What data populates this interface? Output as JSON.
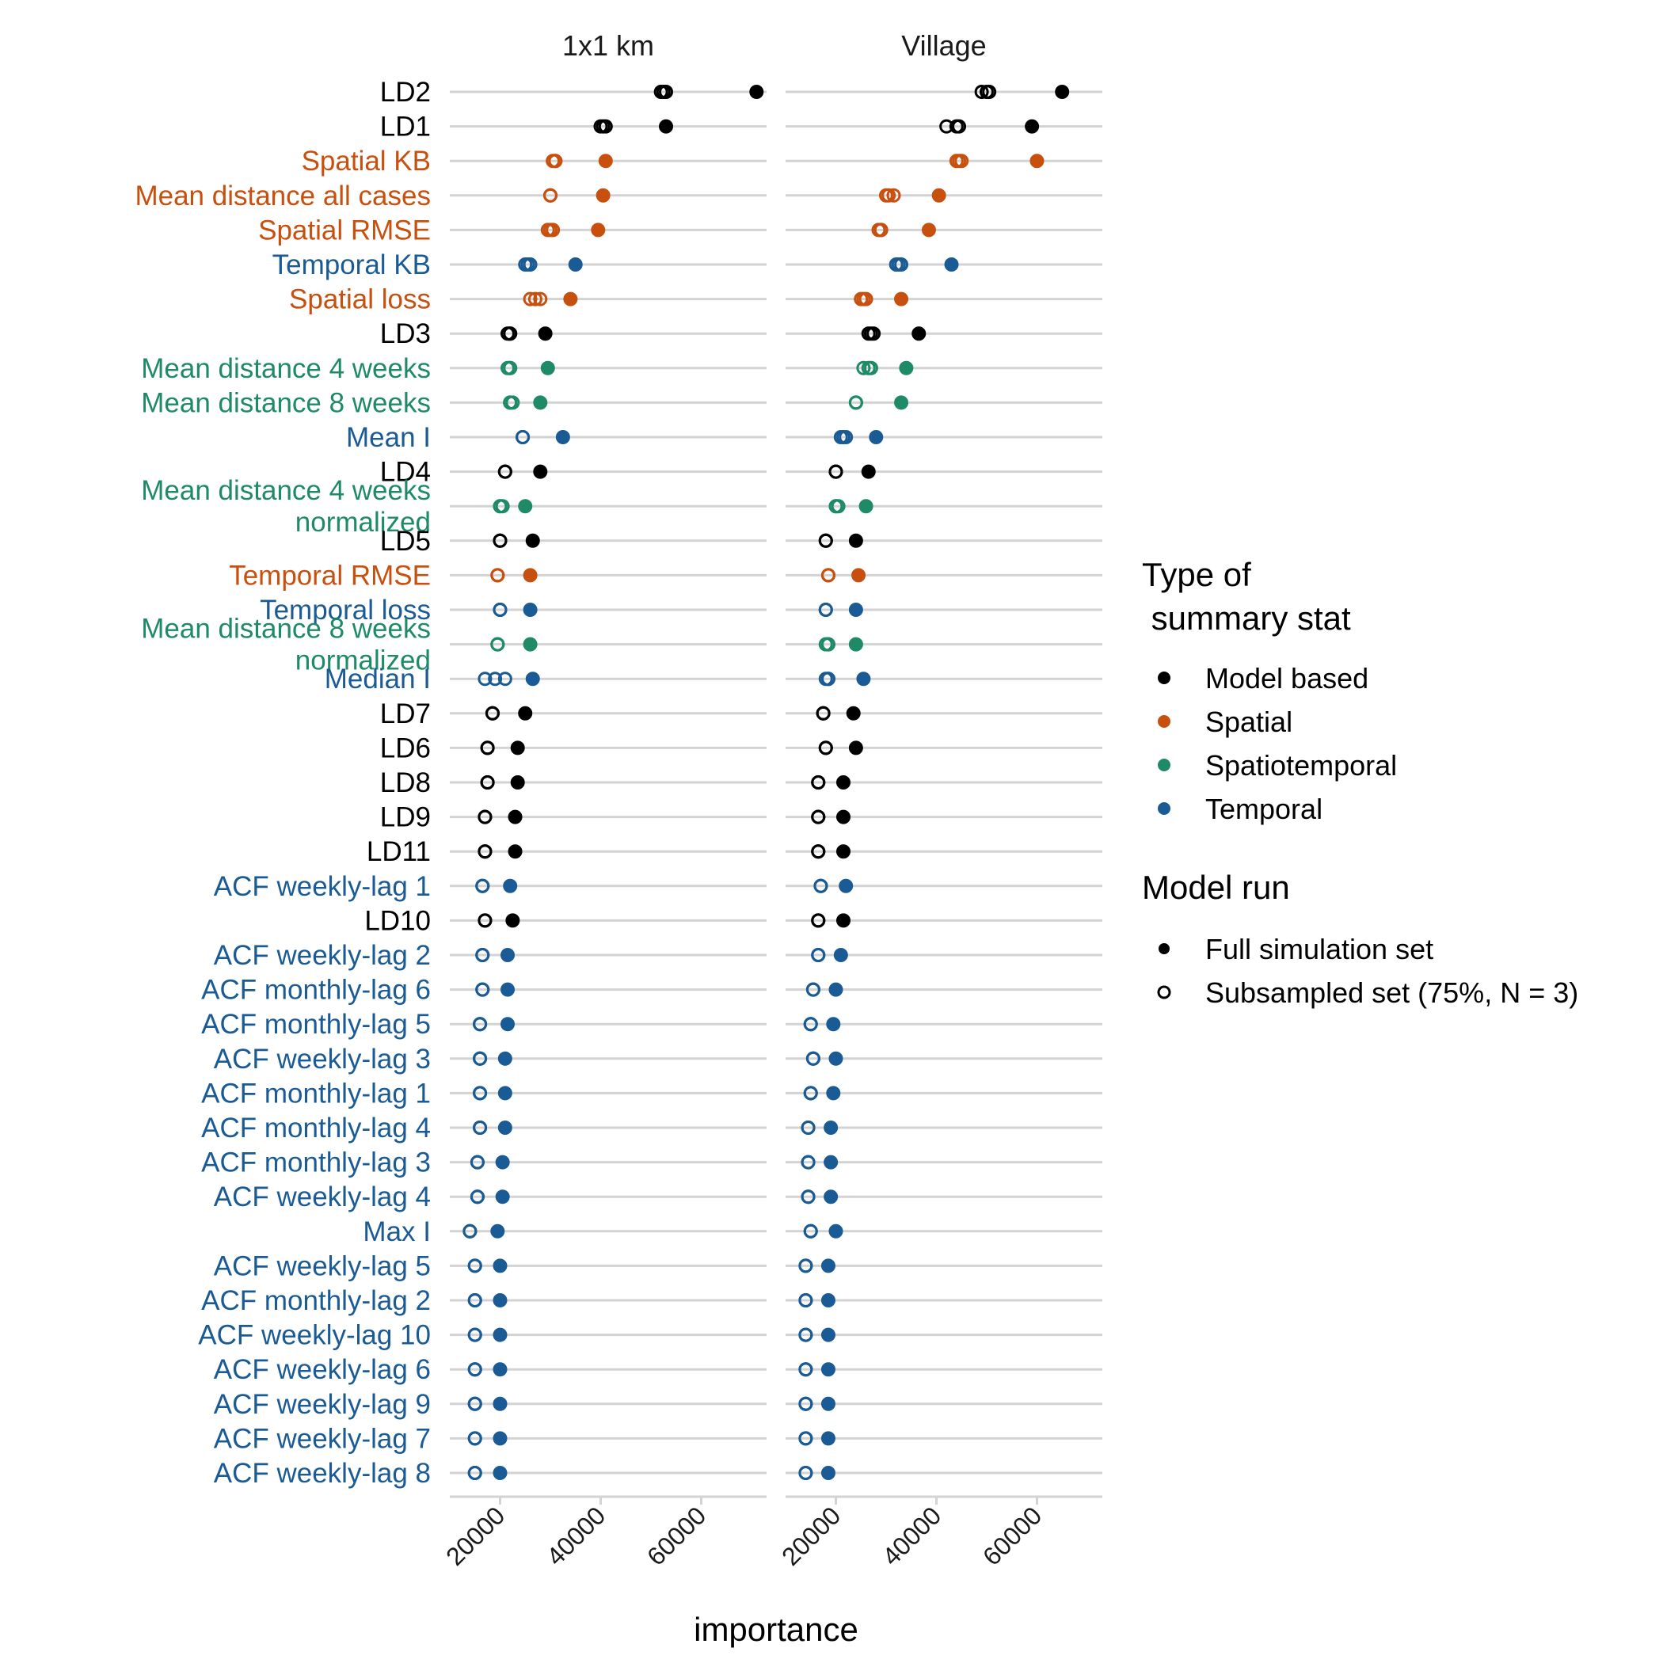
{
  "chart_data": {
    "type": "scatter",
    "facets": [
      "1x1 km",
      "Village"
    ],
    "xlabel": "importance",
    "xlim": [
      10000,
      73000
    ],
    "x_ticks": [
      20000,
      40000,
      60000
    ],
    "x_tick_labels": [
      "20000",
      "40000",
      "60000"
    ],
    "grid": "horizontal lines per category",
    "legend": {
      "position": "right",
      "color_title": "Type of\n summary stat",
      "color_entries": [
        {
          "label": "Model based",
          "type": "Model based"
        },
        {
          "label": "Spatial",
          "type": "Spatial"
        },
        {
          "label": "Spatiotemporal",
          "type": "Spatiotemporal"
        },
        {
          "label": "Temporal",
          "type": "Temporal"
        }
      ],
      "shape_title": "Model run",
      "shape_entries": [
        {
          "label": "Full simulation set",
          "filled": true
        },
        {
          "label": "Subsampled set (75%, N = 3)",
          "filled": false
        }
      ]
    },
    "colors": {
      "Model based": "#000000",
      "Spatial": "#C8500F",
      "Spatiotemporal": "#1E8A66",
      "Temporal": "#1A5B96"
    },
    "categories": [
      {
        "label": "LD2",
        "type": "Model based",
        "km": {
          "full": 71000,
          "sub": [
            52000,
            52500,
            53000
          ]
        },
        "village": {
          "full": 65000,
          "sub": [
            49000,
            50000,
            50500
          ]
        }
      },
      {
        "label": "LD1",
        "type": "Model based",
        "km": {
          "full": 53000,
          "sub": [
            40000,
            40500,
            41000
          ]
        },
        "village": {
          "full": 59000,
          "sub": [
            42000,
            44000,
            44500
          ]
        }
      },
      {
        "label": "Spatial KB",
        "type": "Spatial",
        "km": {
          "full": 41000,
          "sub": [
            30500,
            31000,
            31000
          ]
        },
        "village": {
          "full": 60000,
          "sub": [
            44000,
            44500,
            45000
          ]
        }
      },
      {
        "label": "Mean distance all cases",
        "type": "Spatial",
        "km": {
          "full": 40500,
          "sub": [
            30000,
            30000,
            30000
          ]
        },
        "village": {
          "full": 40500,
          "sub": [
            30000,
            30500,
            31500
          ]
        }
      },
      {
        "label": "Spatial RMSE",
        "type": "Spatial",
        "km": {
          "full": 39500,
          "sub": [
            29500,
            30000,
            30500
          ]
        },
        "village": {
          "full": 38500,
          "sub": [
            28500,
            29000,
            29000
          ]
        }
      },
      {
        "label": "Temporal KB",
        "type": "Temporal",
        "km": {
          "full": 35000,
          "sub": [
            25000,
            25500,
            26000
          ]
        },
        "village": {
          "full": 43000,
          "sub": [
            32000,
            32500,
            33000
          ]
        }
      },
      {
        "label": "Spatial loss",
        "type": "Spatial",
        "km": {
          "full": 34000,
          "sub": [
            26000,
            27000,
            28000
          ]
        },
        "village": {
          "full": 33000,
          "sub": [
            25000,
            25500,
            26000
          ]
        }
      },
      {
        "label": "LD3",
        "type": "Model based",
        "km": {
          "full": 29000,
          "sub": [
            21500,
            22000,
            22000
          ]
        },
        "village": {
          "full": 36500,
          "sub": [
            26500,
            27000,
            27500
          ]
        }
      },
      {
        "label": "Mean distance 4 weeks",
        "type": "Spatiotemporal",
        "km": {
          "full": 29500,
          "sub": [
            21500,
            22000,
            22000
          ]
        },
        "village": {
          "full": 34000,
          "sub": [
            25500,
            26500,
            27000
          ]
        }
      },
      {
        "label": "Mean distance 8 weeks",
        "type": "Spatiotemporal",
        "km": {
          "full": 28000,
          "sub": [
            22000,
            22000,
            22500
          ]
        },
        "village": {
          "full": 33000,
          "sub": [
            24000,
            24000,
            24000
          ]
        }
      },
      {
        "label": "Mean I",
        "type": "Temporal",
        "km": {
          "full": 32500,
          "sub": [
            24500,
            24500,
            24500
          ]
        },
        "village": {
          "full": 28000,
          "sub": [
            21000,
            21500,
            22000
          ]
        }
      },
      {
        "label": "LD4",
        "type": "Model based",
        "km": {
          "full": 28000,
          "sub": [
            21000,
            21000,
            21000
          ]
        },
        "village": {
          "full": 26500,
          "sub": [
            20000,
            20000,
            20000
          ]
        }
      },
      {
        "label": "Mean distance 4 weeks\nnormalized",
        "type": "Spatiotemporal",
        "km": {
          "full": 25000,
          "sub": [
            20000,
            20000,
            20500
          ]
        },
        "village": {
          "full": 26000,
          "sub": [
            20000,
            20000,
            20500
          ]
        }
      },
      {
        "label": "LD5",
        "type": "Model based",
        "km": {
          "full": 26500,
          "sub": [
            20000,
            20000,
            20000
          ]
        },
        "village": {
          "full": 24000,
          "sub": [
            18000,
            18000,
            18000
          ]
        }
      },
      {
        "label": "Temporal RMSE",
        "type": "Spatial",
        "km": {
          "full": 26000,
          "sub": [
            19500,
            19500,
            19500
          ]
        },
        "village": {
          "full": 24500,
          "sub": [
            18500,
            18500,
            18500
          ]
        }
      },
      {
        "label": "Temporal loss",
        "type": "Temporal",
        "km": {
          "full": 26000,
          "sub": [
            20000,
            20000,
            20000
          ]
        },
        "village": {
          "full": 24000,
          "sub": [
            18000,
            18000,
            18000
          ]
        }
      },
      {
        "label": "Mean distance 8 weeks\nnormalized",
        "type": "Spatiotemporal",
        "km": {
          "full": 26000,
          "sub": [
            19500,
            19500,
            19500
          ]
        },
        "village": {
          "full": 24000,
          "sub": [
            18000,
            18500,
            18500
          ]
        }
      },
      {
        "label": "Median I",
        "type": "Temporal",
        "km": {
          "full": 26500,
          "sub": [
            17000,
            19000,
            21000
          ]
        },
        "village": {
          "full": 25500,
          "sub": [
            18000,
            18500,
            18500
          ]
        }
      },
      {
        "label": "LD7",
        "type": "Model based",
        "km": {
          "full": 25000,
          "sub": [
            18500,
            18500,
            18500
          ]
        },
        "village": {
          "full": 23500,
          "sub": [
            17500,
            17500,
            17500
          ]
        }
      },
      {
        "label": "LD6",
        "type": "Model based",
        "km": {
          "full": 23500,
          "sub": [
            17500,
            17500,
            17500
          ]
        },
        "village": {
          "full": 24000,
          "sub": [
            18000,
            18000,
            18000
          ]
        }
      },
      {
        "label": "LD8",
        "type": "Model based",
        "km": {
          "full": 23500,
          "sub": [
            17500,
            17500,
            17500
          ]
        },
        "village": {
          "full": 21500,
          "sub": [
            16500,
            16500,
            16500
          ]
        }
      },
      {
        "label": "LD9",
        "type": "Model based",
        "km": {
          "full": 23000,
          "sub": [
            17000,
            17000,
            17000
          ]
        },
        "village": {
          "full": 21500,
          "sub": [
            16500,
            16500,
            16500
          ]
        }
      },
      {
        "label": "LD11",
        "type": "Model based",
        "km": {
          "full": 23000,
          "sub": [
            17000,
            17000,
            17000
          ]
        },
        "village": {
          "full": 21500,
          "sub": [
            16500,
            16500,
            16500
          ]
        }
      },
      {
        "label": "ACF weekly-lag 1",
        "type": "Temporal",
        "km": {
          "full": 22000,
          "sub": [
            16500,
            16500,
            16500
          ]
        },
        "village": {
          "full": 22000,
          "sub": [
            17000,
            17000,
            17000
          ]
        }
      },
      {
        "label": "LD10",
        "type": "Model based",
        "km": {
          "full": 22500,
          "sub": [
            17000,
            17000,
            17000
          ]
        },
        "village": {
          "full": 21500,
          "sub": [
            16500,
            16500,
            16500
          ]
        }
      },
      {
        "label": "ACF weekly-lag 2",
        "type": "Temporal",
        "km": {
          "full": 21500,
          "sub": [
            16500,
            16500,
            16500
          ]
        },
        "village": {
          "full": 21000,
          "sub": [
            16500,
            16500,
            16500
          ]
        }
      },
      {
        "label": "ACF monthly-lag 6",
        "type": "Temporal",
        "km": {
          "full": 21500,
          "sub": [
            16500,
            16500,
            16500
          ]
        },
        "village": {
          "full": 20000,
          "sub": [
            15500,
            15500,
            15500
          ]
        }
      },
      {
        "label": "ACF monthly-lag 5",
        "type": "Temporal",
        "km": {
          "full": 21500,
          "sub": [
            16000,
            16000,
            16000
          ]
        },
        "village": {
          "full": 19500,
          "sub": [
            15000,
            15000,
            15000
          ]
        }
      },
      {
        "label": "ACF weekly-lag 3",
        "type": "Temporal",
        "km": {
          "full": 21000,
          "sub": [
            16000,
            16000,
            16000
          ]
        },
        "village": {
          "full": 20000,
          "sub": [
            15500,
            15500,
            15500
          ]
        }
      },
      {
        "label": "ACF monthly-lag 1",
        "type": "Temporal",
        "km": {
          "full": 21000,
          "sub": [
            16000,
            16000,
            16000
          ]
        },
        "village": {
          "full": 19500,
          "sub": [
            15000,
            15000,
            15000
          ]
        }
      },
      {
        "label": "ACF monthly-lag 4",
        "type": "Temporal",
        "km": {
          "full": 21000,
          "sub": [
            16000,
            16000,
            16000
          ]
        },
        "village": {
          "full": 19000,
          "sub": [
            14500,
            14500,
            14500
          ]
        }
      },
      {
        "label": "ACF monthly-lag 3",
        "type": "Temporal",
        "km": {
          "full": 20500,
          "sub": [
            15500,
            15500,
            15500
          ]
        },
        "village": {
          "full": 19000,
          "sub": [
            14500,
            14500,
            14500
          ]
        }
      },
      {
        "label": "ACF weekly-lag 4",
        "type": "Temporal",
        "km": {
          "full": 20500,
          "sub": [
            15500,
            15500,
            15500
          ]
        },
        "village": {
          "full": 19000,
          "sub": [
            14500,
            14500,
            14500
          ]
        }
      },
      {
        "label": "Max I",
        "type": "Temporal",
        "km": {
          "full": 19500,
          "sub": [
            14000,
            14000,
            14000
          ]
        },
        "village": {
          "full": 20000,
          "sub": [
            15000,
            15000,
            15000
          ]
        }
      },
      {
        "label": "ACF weekly-lag 5",
        "type": "Temporal",
        "km": {
          "full": 20000,
          "sub": [
            15000,
            15000,
            15000
          ]
        },
        "village": {
          "full": 18500,
          "sub": [
            14000,
            14000,
            14000
          ]
        }
      },
      {
        "label": "ACF monthly-lag 2",
        "type": "Temporal",
        "km": {
          "full": 20000,
          "sub": [
            15000,
            15000,
            15000
          ]
        },
        "village": {
          "full": 18500,
          "sub": [
            14000,
            14000,
            14000
          ]
        }
      },
      {
        "label": "ACF weekly-lag 10",
        "type": "Temporal",
        "km": {
          "full": 20000,
          "sub": [
            15000,
            15000,
            15000
          ]
        },
        "village": {
          "full": 18500,
          "sub": [
            14000,
            14000,
            14000
          ]
        }
      },
      {
        "label": "ACF weekly-lag 6",
        "type": "Temporal",
        "km": {
          "full": 20000,
          "sub": [
            15000,
            15000,
            15000
          ]
        },
        "village": {
          "full": 18500,
          "sub": [
            14000,
            14000,
            14000
          ]
        }
      },
      {
        "label": "ACF weekly-lag 9",
        "type": "Temporal",
        "km": {
          "full": 20000,
          "sub": [
            15000,
            15000,
            15000
          ]
        },
        "village": {
          "full": 18500,
          "sub": [
            14000,
            14000,
            14000
          ]
        }
      },
      {
        "label": "ACF weekly-lag 7",
        "type": "Temporal",
        "km": {
          "full": 20000,
          "sub": [
            15000,
            15000,
            15000
          ]
        },
        "village": {
          "full": 18500,
          "sub": [
            14000,
            14000,
            14000
          ]
        }
      },
      {
        "label": "ACF weekly-lag 8",
        "type": "Temporal",
        "km": {
          "full": 20000,
          "sub": [
            15000,
            15000,
            15000
          ]
        },
        "village": {
          "full": 18500,
          "sub": [
            14000,
            14000,
            14000
          ]
        }
      }
    ]
  }
}
